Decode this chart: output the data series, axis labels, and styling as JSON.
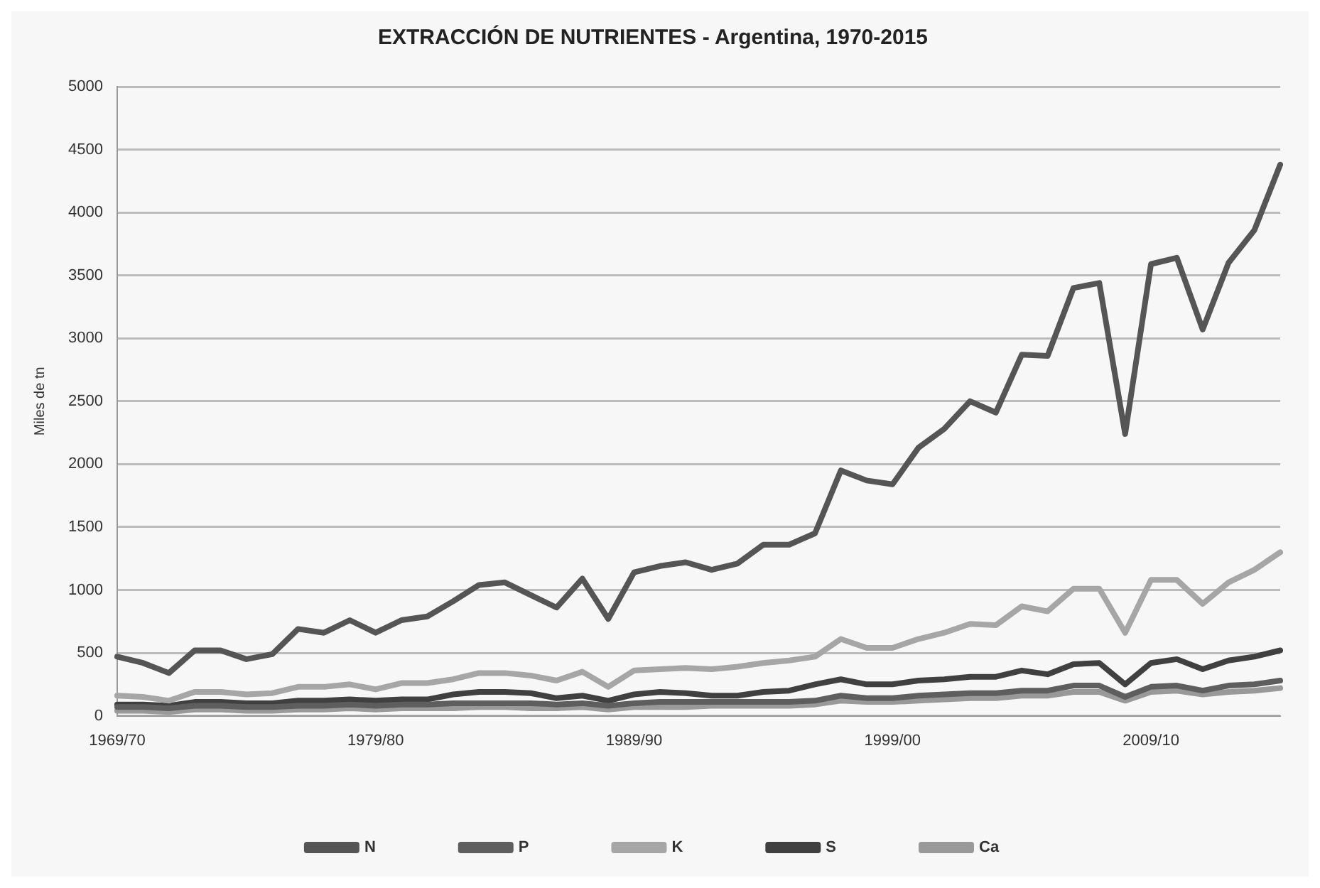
{
  "chart_data": {
    "type": "line",
    "title": "EXTRACCIÓN DE NUTRIENTES - Argentina, 1970-2015",
    "ylabel": "Miles de tn",
    "categories": [
      "1969/70",
      null,
      null,
      null,
      null,
      null,
      null,
      null,
      null,
      null,
      "1979/80",
      null,
      null,
      null,
      null,
      null,
      null,
      null,
      null,
      null,
      "1989/90",
      null,
      null,
      null,
      null,
      null,
      null,
      null,
      null,
      null,
      "1999/00",
      null,
      null,
      null,
      null,
      null,
      null,
      null,
      null,
      null,
      "2009/10",
      null,
      null,
      null,
      null,
      null
    ],
    "series": [
      {
        "name": "N",
        "color": "#555555",
        "values": [
          470,
          420,
          340,
          520,
          520,
          450,
          490,
          690,
          660,
          760,
          660,
          760,
          790,
          910,
          1040,
          1060,
          960,
          860,
          1090,
          770,
          1140,
          1190,
          1220,
          1160,
          1210,
          1360,
          1360,
          1450,
          1950,
          1870,
          1840,
          2130,
          2280,
          2500,
          2410,
          2870,
          2860,
          3400,
          3440,
          2240,
          3590,
          3640,
          3070,
          3600,
          3860,
          4380
        ]
      },
      {
        "name": "P",
        "color": "#5e5e5e",
        "values": [
          70,
          70,
          60,
          80,
          80,
          70,
          70,
          80,
          80,
          90,
          80,
          90,
          90,
          100,
          100,
          100,
          100,
          90,
          100,
          80,
          100,
          110,
          110,
          110,
          110,
          110,
          110,
          120,
          160,
          140,
          140,
          160,
          170,
          180,
          180,
          200,
          200,
          240,
          240,
          150,
          230,
          240,
          200,
          240,
          250,
          280
        ]
      },
      {
        "name": "K",
        "color": "#a6a6a6",
        "values": [
          160,
          150,
          120,
          190,
          190,
          170,
          180,
          230,
          230,
          250,
          210,
          260,
          260,
          290,
          340,
          340,
          320,
          280,
          350,
          230,
          360,
          370,
          380,
          370,
          390,
          420,
          440,
          470,
          610,
          540,
          540,
          610,
          660,
          730,
          720,
          870,
          830,
          1010,
          1010,
          660,
          1080,
          1080,
          890,
          1060,
          1160,
          1300
        ]
      },
      {
        "name": "S",
        "color": "#404040",
        "values": [
          90,
          90,
          80,
          110,
          110,
          100,
          100,
          120,
          120,
          130,
          120,
          130,
          130,
          170,
          190,
          190,
          180,
          140,
          160,
          120,
          170,
          190,
          180,
          160,
          160,
          190,
          200,
          250,
          290,
          250,
          250,
          280,
          290,
          310,
          310,
          360,
          330,
          410,
          420,
          250,
          420,
          450,
          370,
          440,
          470,
          520
        ]
      },
      {
        "name": "Ca",
        "color": "#999999",
        "values": [
          40,
          40,
          30,
          50,
          50,
          40,
          40,
          50,
          50,
          60,
          50,
          60,
          60,
          60,
          70,
          70,
          60,
          60,
          70,
          50,
          70,
          70,
          70,
          80,
          80,
          80,
          80,
          90,
          120,
          110,
          110,
          120,
          130,
          140,
          140,
          160,
          160,
          190,
          190,
          120,
          190,
          200,
          170,
          190,
          200,
          220
        ]
      }
    ],
    "ylim": [
      0,
      5000
    ],
    "yticks": [
      0,
      500,
      1000,
      1500,
      2000,
      2500,
      3000,
      3500,
      4000,
      4500,
      5000
    ],
    "grid": "y",
    "legend": "bottom",
    "marker": "none",
    "line_style": "solid"
  }
}
